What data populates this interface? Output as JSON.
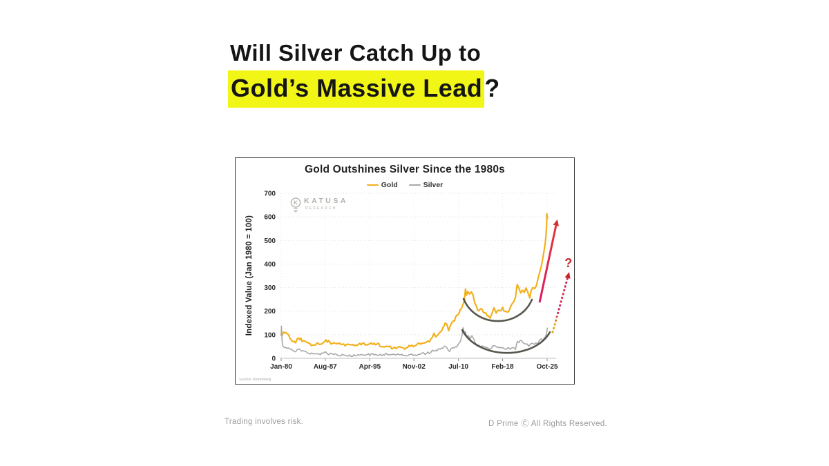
{
  "headline": {
    "line1": "Will Silver Catch Up to",
    "highlight": "Gold’s Massive Lead",
    "suffix": "?",
    "highlight_color": "#F1F616"
  },
  "watermark": {
    "brand": "KATUSA",
    "sub": "RESEARCH"
  },
  "footer": {
    "left": "Trading involves risk.",
    "right": "D Prime Ⓒ All Rights Reserved."
  },
  "chart_data": {
    "type": "line",
    "title": "Gold Outshines Silver Since the 1980s",
    "ylabel": "Indexed Value (Jan 1980 = 100)",
    "source": "Source: Bloomberg",
    "ylim": [
      0,
      700
    ],
    "y_ticks": [
      0,
      100,
      200,
      300,
      400,
      500,
      600,
      700
    ],
    "x_ticks": [
      {
        "label": "Jan-80",
        "t": 1980.0
      },
      {
        "label": "Aug-87",
        "t": 1987.58
      },
      {
        "label": "Apr-95",
        "t": 1995.25
      },
      {
        "label": "Nov-02",
        "t": 2002.83
      },
      {
        "label": "Jul-10",
        "t": 2010.5
      },
      {
        "label": "Feb-18",
        "t": 2018.08
      },
      {
        "label": "Oct-25",
        "t": 2025.75
      }
    ],
    "grid": true,
    "legend_position": "top",
    "series": [
      {
        "name": "Gold",
        "color": "#F2B01D",
        "points": [
          [
            1980.0,
            100
          ],
          [
            1980.15,
            95
          ],
          [
            1980.4,
            108
          ],
          [
            1980.8,
            104
          ],
          [
            1981.1,
            108
          ],
          [
            1981.5,
            85
          ],
          [
            1982.0,
            72
          ],
          [
            1982.5,
            68
          ],
          [
            1983.0,
            86
          ],
          [
            1983.4,
            80
          ],
          [
            1983.8,
            72
          ],
          [
            1984.3,
            66
          ],
          [
            1984.8,
            60
          ],
          [
            1985.2,
            55
          ],
          [
            1985.6,
            54
          ],
          [
            1986.2,
            60
          ],
          [
            1986.8,
            65
          ],
          [
            1987.3,
            70
          ],
          [
            1987.7,
            76
          ],
          [
            1988.2,
            70
          ],
          [
            1988.6,
            66
          ],
          [
            1989.0,
            62
          ],
          [
            1989.5,
            61
          ],
          [
            1990.0,
            63
          ],
          [
            1990.5,
            60
          ],
          [
            1991.0,
            58
          ],
          [
            1991.5,
            57
          ],
          [
            1992.0,
            55
          ],
          [
            1992.5,
            54
          ],
          [
            1993.0,
            57
          ],
          [
            1993.5,
            60
          ],
          [
            1994.0,
            62
          ],
          [
            1994.5,
            61
          ],
          [
            1995.0,
            62
          ],
          [
            1995.5,
            63
          ],
          [
            1996.0,
            64
          ],
          [
            1996.5,
            62
          ],
          [
            1997.0,
            55
          ],
          [
            1997.5,
            52
          ],
          [
            1998.0,
            48
          ],
          [
            1998.5,
            47
          ],
          [
            1999.0,
            45
          ],
          [
            1999.5,
            47
          ],
          [
            2000.0,
            45
          ],
          [
            2000.5,
            44
          ],
          [
            2001.0,
            43
          ],
          [
            2001.5,
            44
          ],
          [
            2002.0,
            49
          ],
          [
            2002.5,
            52
          ],
          [
            2003.0,
            56
          ],
          [
            2003.5,
            58
          ],
          [
            2004.0,
            64
          ],
          [
            2004.5,
            63
          ],
          [
            2005.0,
            68
          ],
          [
            2005.5,
            73
          ],
          [
            2006.0,
            88
          ],
          [
            2006.3,
            102
          ],
          [
            2006.6,
            96
          ],
          [
            2007.0,
            104
          ],
          [
            2007.4,
            110
          ],
          [
            2007.8,
            125
          ],
          [
            2008.2,
            152
          ],
          [
            2008.5,
            140
          ],
          [
            2008.8,
            122
          ],
          [
            2009.2,
            142
          ],
          [
            2009.6,
            155
          ],
          [
            2010.0,
            172
          ],
          [
            2010.4,
            185
          ],
          [
            2010.8,
            205
          ],
          [
            2011.2,
            225
          ],
          [
            2011.5,
            245
          ],
          [
            2011.7,
            298
          ],
          [
            2011.9,
            268
          ],
          [
            2012.1,
            282
          ],
          [
            2012.4,
            270
          ],
          [
            2012.7,
            278
          ],
          [
            2013.0,
            265
          ],
          [
            2013.3,
            240
          ],
          [
            2013.6,
            215
          ],
          [
            2014.0,
            200
          ],
          [
            2014.4,
            208
          ],
          [
            2014.8,
            195
          ],
          [
            2015.2,
            190
          ],
          [
            2015.6,
            182
          ],
          [
            2015.95,
            172
          ],
          [
            2016.3,
            195
          ],
          [
            2016.6,
            212
          ],
          [
            2017.0,
            196
          ],
          [
            2017.4,
            200
          ],
          [
            2017.8,
            206
          ],
          [
            2018.1,
            212
          ],
          [
            2018.5,
            200
          ],
          [
            2018.8,
            192
          ],
          [
            2019.2,
            205
          ],
          [
            2019.6,
            228
          ],
          [
            2020.0,
            245
          ],
          [
            2020.3,
            258
          ],
          [
            2020.6,
            308
          ],
          [
            2020.9,
            295
          ],
          [
            2021.2,
            275
          ],
          [
            2021.5,
            286
          ],
          [
            2021.8,
            280
          ],
          [
            2022.1,
            298
          ],
          [
            2022.4,
            285
          ],
          [
            2022.75,
            262
          ],
          [
            2023.0,
            285
          ],
          [
            2023.3,
            300
          ],
          [
            2023.6,
            294
          ],
          [
            2023.9,
            310
          ],
          [
            2024.2,
            335
          ],
          [
            2024.5,
            362
          ],
          [
            2024.8,
            398
          ],
          [
            2025.0,
            425
          ],
          [
            2025.2,
            452
          ],
          [
            2025.4,
            492
          ],
          [
            2025.55,
            524
          ],
          [
            2025.65,
            562
          ],
          [
            2025.72,
            612
          ],
          [
            2025.78,
            597
          ],
          [
            2025.82,
            603
          ]
        ]
      },
      {
        "name": "Silver",
        "color": "#A8A8A8",
        "points": [
          [
            1980.0,
            95
          ],
          [
            1980.05,
            140
          ],
          [
            1980.15,
            75
          ],
          [
            1980.3,
            55
          ],
          [
            1980.6,
            48
          ],
          [
            1981.0,
            45
          ],
          [
            1981.5,
            40
          ],
          [
            1982.0,
            32
          ],
          [
            1982.5,
            30
          ],
          [
            1983.0,
            38
          ],
          [
            1983.5,
            34
          ],
          [
            1984.0,
            28
          ],
          [
            1984.5,
            24
          ],
          [
            1985.0,
            21
          ],
          [
            1985.5,
            19
          ],
          [
            1986.0,
            16
          ],
          [
            1986.5,
            17
          ],
          [
            1987.0,
            20
          ],
          [
            1987.5,
            24
          ],
          [
            1988.0,
            20
          ],
          [
            1988.5,
            18
          ],
          [
            1989.0,
            17
          ],
          [
            1989.5,
            16
          ],
          [
            1990.0,
            15
          ],
          [
            1990.5,
            14
          ],
          [
            1991.0,
            12
          ],
          [
            1991.5,
            12
          ],
          [
            1992.0,
            12
          ],
          [
            1992.5,
            12
          ],
          [
            1993.0,
            13
          ],
          [
            1993.5,
            14
          ],
          [
            1994.0,
            16
          ],
          [
            1994.5,
            16
          ],
          [
            1995.0,
            16
          ],
          [
            1995.5,
            16
          ],
          [
            1996.0,
            15
          ],
          [
            1996.5,
            15
          ],
          [
            1997.0,
            14
          ],
          [
            1997.5,
            15
          ],
          [
            1998.0,
            18
          ],
          [
            1998.5,
            16
          ],
          [
            1999.0,
            16
          ],
          [
            1999.5,
            16
          ],
          [
            2000.0,
            15
          ],
          [
            2000.5,
            14
          ],
          [
            2001.0,
            13
          ],
          [
            2001.5,
            13
          ],
          [
            2002.0,
            14
          ],
          [
            2002.5,
            14
          ],
          [
            2003.0,
            14
          ],
          [
            2003.5,
            15
          ],
          [
            2004.0,
            20
          ],
          [
            2004.5,
            19
          ],
          [
            2005.0,
            21
          ],
          [
            2005.5,
            24
          ],
          [
            2006.0,
            34
          ],
          [
            2006.3,
            32
          ],
          [
            2006.6,
            33
          ],
          [
            2007.0,
            38
          ],
          [
            2007.4,
            40
          ],
          [
            2007.8,
            44
          ],
          [
            2008.2,
            54
          ],
          [
            2008.5,
            44
          ],
          [
            2008.8,
            28
          ],
          [
            2009.2,
            38
          ],
          [
            2009.6,
            44
          ],
          [
            2010.0,
            50
          ],
          [
            2010.4,
            53
          ],
          [
            2010.8,
            72
          ],
          [
            2011.1,
            95
          ],
          [
            2011.3,
            132
          ],
          [
            2011.5,
            105
          ],
          [
            2011.7,
            112
          ],
          [
            2011.9,
            88
          ],
          [
            2012.2,
            92
          ],
          [
            2012.5,
            85
          ],
          [
            2012.8,
            92
          ],
          [
            2013.1,
            80
          ],
          [
            2013.4,
            65
          ],
          [
            2013.7,
            58
          ],
          [
            2014.0,
            56
          ],
          [
            2014.4,
            55
          ],
          [
            2014.8,
            47
          ],
          [
            2015.2,
            45
          ],
          [
            2015.6,
            42
          ],
          [
            2016.0,
            39
          ],
          [
            2016.4,
            50
          ],
          [
            2016.7,
            54
          ],
          [
            2017.0,
            48
          ],
          [
            2017.4,
            46
          ],
          [
            2017.8,
            45
          ],
          [
            2018.2,
            44
          ],
          [
            2018.6,
            40
          ],
          [
            2019.0,
            42
          ],
          [
            2019.4,
            41
          ],
          [
            2019.8,
            48
          ],
          [
            2020.1,
            46
          ],
          [
            2020.3,
            33
          ],
          [
            2020.6,
            68
          ],
          [
            2020.9,
            66
          ],
          [
            2021.1,
            74
          ],
          [
            2021.4,
            70
          ],
          [
            2021.7,
            64
          ],
          [
            2022.0,
            63
          ],
          [
            2022.3,
            65
          ],
          [
            2022.6,
            54
          ],
          [
            2022.9,
            57
          ],
          [
            2023.2,
            61
          ],
          [
            2023.5,
            63
          ],
          [
            2023.8,
            62
          ],
          [
            2024.1,
            66
          ],
          [
            2024.4,
            75
          ],
          [
            2024.7,
            82
          ],
          [
            2025.0,
            78
          ],
          [
            2025.2,
            85
          ],
          [
            2025.4,
            90
          ],
          [
            2025.55,
            96
          ],
          [
            2025.65,
            105
          ],
          [
            2025.75,
            122
          ],
          [
            2025.82,
            130
          ]
        ]
      }
    ],
    "annotations": {
      "cups": [
        {
          "from": [
            2011.38,
            252
          ],
          "bottom": [
            2016.13,
            158
          ],
          "to": [
            2023.14,
            249
          ],
          "color": "#45453B"
        },
        {
          "from": [
            2011.14,
            120
          ],
          "bottom": [
            2017.08,
            23
          ],
          "to": [
            2026.22,
            111
          ],
          "color": "#45453B"
        }
      ],
      "arrows": [
        {
          "style": "solid",
          "from": [
            2024.45,
            237
          ],
          "to": [
            2027.5,
            589
          ],
          "color_bottom": "#D81B60",
          "color_top": "#E53935",
          "head_color": "#D32F2F"
        },
        {
          "style": "dotted",
          "from": [
            2026.7,
            111
          ],
          "to": [
            2029.55,
            366
          ],
          "color_bottom": "#DFA71B",
          "color_top": "#D62750",
          "head_color": "#C62828"
        }
      ],
      "question_mark": {
        "t": 2029.4,
        "v": 404,
        "text": "?",
        "color": "#C5262C"
      }
    }
  }
}
